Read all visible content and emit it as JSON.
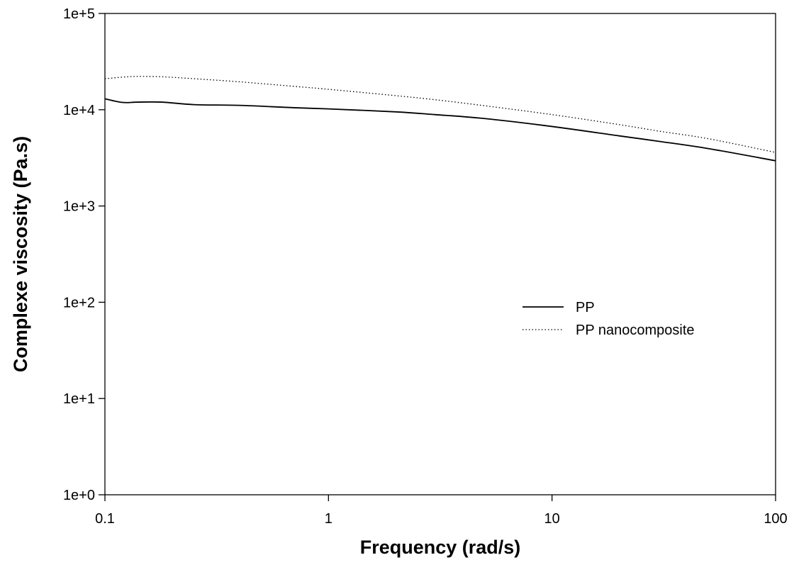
{
  "chart_data": {
    "type": "line",
    "title": "",
    "xlabel": "Frequency (rad/s)",
    "ylabel": "Complexe viscosity (Pa.s)",
    "xscale": "log",
    "yscale": "log",
    "xlim": [
      0.1,
      100
    ],
    "ylim": [
      1,
      100000
    ],
    "x_ticks": [
      {
        "value": 0.1,
        "label": "0.1"
      },
      {
        "value": 1,
        "label": "1"
      },
      {
        "value": 10,
        "label": "10"
      },
      {
        "value": 100,
        "label": "100"
      }
    ],
    "y_ticks": [
      {
        "value": 1,
        "label": "1e+0"
      },
      {
        "value": 10,
        "label": "1e+1"
      },
      {
        "value": 100,
        "label": "1e+2"
      },
      {
        "value": 1000,
        "label": "1e+3"
      },
      {
        "value": 10000,
        "label": "1e+4"
      },
      {
        "value": 100000,
        "label": "1e+5"
      }
    ],
    "grid": false,
    "legend_position": "center-right",
    "series": [
      {
        "name": "PP",
        "line_style": "solid",
        "color": "#000000",
        "x": [
          0.1,
          0.12,
          0.14,
          0.18,
          0.25,
          0.4,
          0.7,
          1,
          2,
          3,
          5,
          10,
          20,
          30,
          50,
          100
        ],
        "y": [
          13000,
          11900,
          12000,
          12000,
          11300,
          11100,
          10500,
          10200,
          9500,
          8900,
          8100,
          6700,
          5350,
          4700,
          3950,
          2950
        ]
      },
      {
        "name": "PP nanocomposite",
        "line_style": "dotted",
        "color": "#000000",
        "x": [
          0.1,
          0.12,
          0.14,
          0.18,
          0.25,
          0.4,
          0.7,
          1,
          2,
          3,
          5,
          10,
          20,
          30,
          50,
          100
        ],
        "y": [
          21000,
          21800,
          22200,
          22000,
          21000,
          19500,
          17500,
          16300,
          14000,
          12700,
          11000,
          8900,
          7000,
          6000,
          5000,
          3600
        ]
      }
    ]
  }
}
